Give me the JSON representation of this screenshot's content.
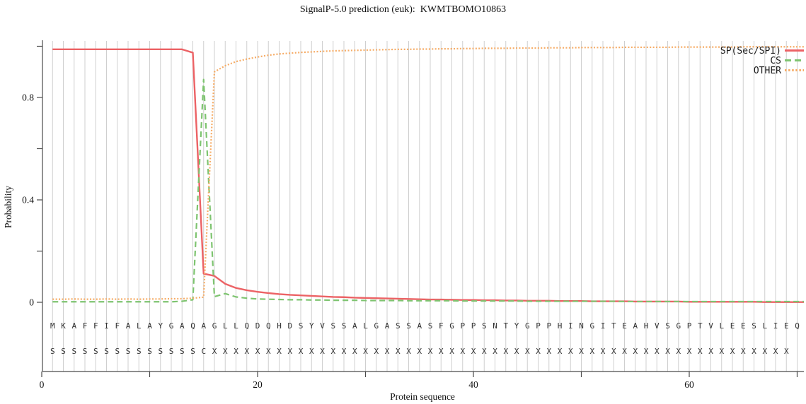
{
  "title": "SignalP-5.0 prediction (euk):  KWMTBOMO10863",
  "chart_data": {
    "type": "line",
    "title": "SignalP-5.0 prediction (euk):  KWMTBOMO10863",
    "xlabel": "Protein sequence",
    "ylabel": "Probability",
    "xlim": [
      0,
      70.5
    ],
    "ylim": [
      0,
      1.0
    ],
    "grid": "vertical line at every residue position",
    "legend_position": "top-right-inside",
    "x_axis": {
      "ticks": [
        {
          "v": 0,
          "label": "0"
        },
        {
          "v": 10,
          "label": ""
        },
        {
          "v": 20,
          "label": "20"
        },
        {
          "v": 30,
          "label": ""
        },
        {
          "v": 40,
          "label": "40"
        },
        {
          "v": 50,
          "label": ""
        },
        {
          "v": 60,
          "label": "60"
        },
        {
          "v": 70,
          "label": ""
        }
      ]
    },
    "y_axis": {
      "ticks": [
        {
          "v": 0,
          "label": "0"
        },
        {
          "v": 0.2,
          "label": ""
        },
        {
          "v": 0.4,
          "label": "0.4"
        },
        {
          "v": 0.6,
          "label": ""
        },
        {
          "v": 0.8,
          "label": "0.8"
        },
        {
          "v": 1.0,
          "label": ""
        }
      ]
    },
    "sequence": "MKAFFIFALAYGAQAGLLQDQHDSYVSSALGASSASFGPPSNTYGPPHINGITEAHVSGPTVLEESLIEQ",
    "marker_row": "SSSSSSSSSSSSSSCXXXXXXXXXXXXXXXXXXXXXXXXXXXXXXXXXXXXXXXXXXXXXXXXXXXXXX",
    "x_start": 1,
    "series": [
      {
        "id": "sp-sec-spi",
        "name": "SP(Sec/SPI)",
        "color": "#ec6265",
        "style": "solid",
        "values": [
          0.988,
          0.988,
          0.988,
          0.988,
          0.988,
          0.988,
          0.988,
          0.988,
          0.988,
          0.988,
          0.988,
          0.988,
          0.988,
          0.975,
          0.112,
          0.103,
          0.072,
          0.056,
          0.047,
          0.041,
          0.036,
          0.032,
          0.029,
          0.027,
          0.025,
          0.023,
          0.021,
          0.02,
          0.018,
          0.017,
          0.016,
          0.015,
          0.014,
          0.013,
          0.012,
          0.011,
          0.011,
          0.01,
          0.009,
          0.009,
          0.008,
          0.008,
          0.007,
          0.007,
          0.006,
          0.006,
          0.006,
          0.005,
          0.005,
          0.005,
          0.004,
          0.004,
          0.004,
          0.004,
          0.003,
          0.003,
          0.003,
          0.003,
          0.003,
          0.002,
          0.002,
          0.002,
          0.002,
          0.002,
          0.002,
          0.002,
          0.001,
          0.001,
          0.001,
          0.001
        ]
      },
      {
        "id": "cs",
        "name": "CS",
        "color": "#7ec470",
        "style": "dashed",
        "values": [
          0.002,
          0.002,
          0.002,
          0.002,
          0.002,
          0.002,
          0.002,
          0.002,
          0.002,
          0.002,
          0.002,
          0.002,
          0.004,
          0.01,
          0.87,
          0.022,
          0.034,
          0.021,
          0.016,
          0.013,
          0.012,
          0.011,
          0.01,
          0.01,
          0.009,
          0.009,
          0.008,
          0.008,
          0.008,
          0.007,
          0.007,
          0.007,
          0.007,
          0.006,
          0.006,
          0.006,
          0.006,
          0.006,
          0.005,
          0.005,
          0.005,
          0.005,
          0.005,
          0.005,
          0.004,
          0.004,
          0.004,
          0.004,
          0.004,
          0.004,
          0.004,
          0.004,
          0.004,
          0.003,
          0.003,
          0.003,
          0.003,
          0.003,
          0.003,
          0.003,
          0.003,
          0.003,
          0.003,
          0.003,
          0.003,
          0.003,
          0.003,
          0.003,
          0.003,
          0.003
        ]
      },
      {
        "id": "other",
        "name": "OTHER",
        "color": "#f6ac66",
        "style": "dotted",
        "values": [
          0.012,
          0.012,
          0.013,
          0.012,
          0.012,
          0.013,
          0.012,
          0.013,
          0.012,
          0.013,
          0.013,
          0.014,
          0.014,
          0.016,
          0.02,
          0.9,
          0.924,
          0.94,
          0.95,
          0.958,
          0.965,
          0.97,
          0.973,
          0.976,
          0.978,
          0.98,
          0.982,
          0.983,
          0.984,
          0.985,
          0.986,
          0.987,
          0.988,
          0.988,
          0.989,
          0.989,
          0.99,
          0.99,
          0.991,
          0.991,
          0.992,
          0.992,
          0.992,
          0.993,
          0.993,
          0.993,
          0.994,
          0.994,
          0.994,
          0.995,
          0.995,
          0.995,
          0.995,
          0.996,
          0.996,
          0.996,
          0.996,
          0.996,
          0.997,
          0.997,
          0.997,
          0.997,
          0.997,
          0.997,
          0.998,
          0.998,
          0.998,
          0.998,
          0.998,
          0.998
        ]
      }
    ]
  }
}
